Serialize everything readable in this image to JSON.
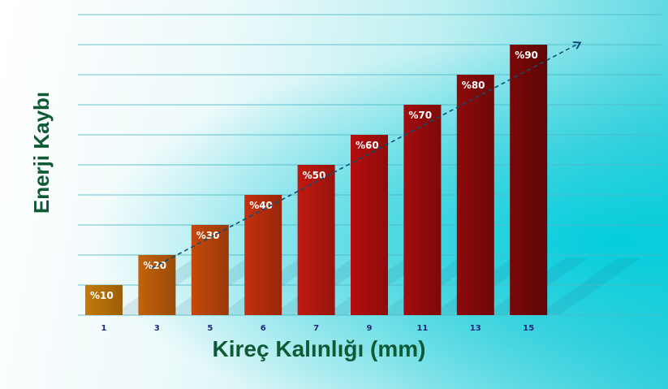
{
  "chart_data": {
    "type": "bar",
    "ylabel": "Enerji Kaybı",
    "xlabel": "Kireç Kalınlığı (mm)",
    "categories": [
      "1",
      "3",
      "5",
      "6",
      "7",
      "9",
      "11",
      "13",
      "15"
    ],
    "values": [
      10,
      20,
      30,
      40,
      50,
      60,
      70,
      80,
      90
    ],
    "data_labels": [
      "%10",
      "%20",
      "%30",
      "%40",
      "%50",
      "%60",
      "%70",
      "%80",
      "%90"
    ],
    "ylim": [
      0,
      100
    ],
    "grid": true,
    "trendline": {
      "style": "dashed",
      "arrow": true,
      "color": "#0a4f78"
    },
    "colors": {
      "bar_start": "#c57a0a",
      "bar_mid": "#c20f0f",
      "bar_end": "#7a0808",
      "grid": "#4fb8c6",
      "label": "#0e5a34",
      "tick": "#1e2a7a"
    }
  }
}
